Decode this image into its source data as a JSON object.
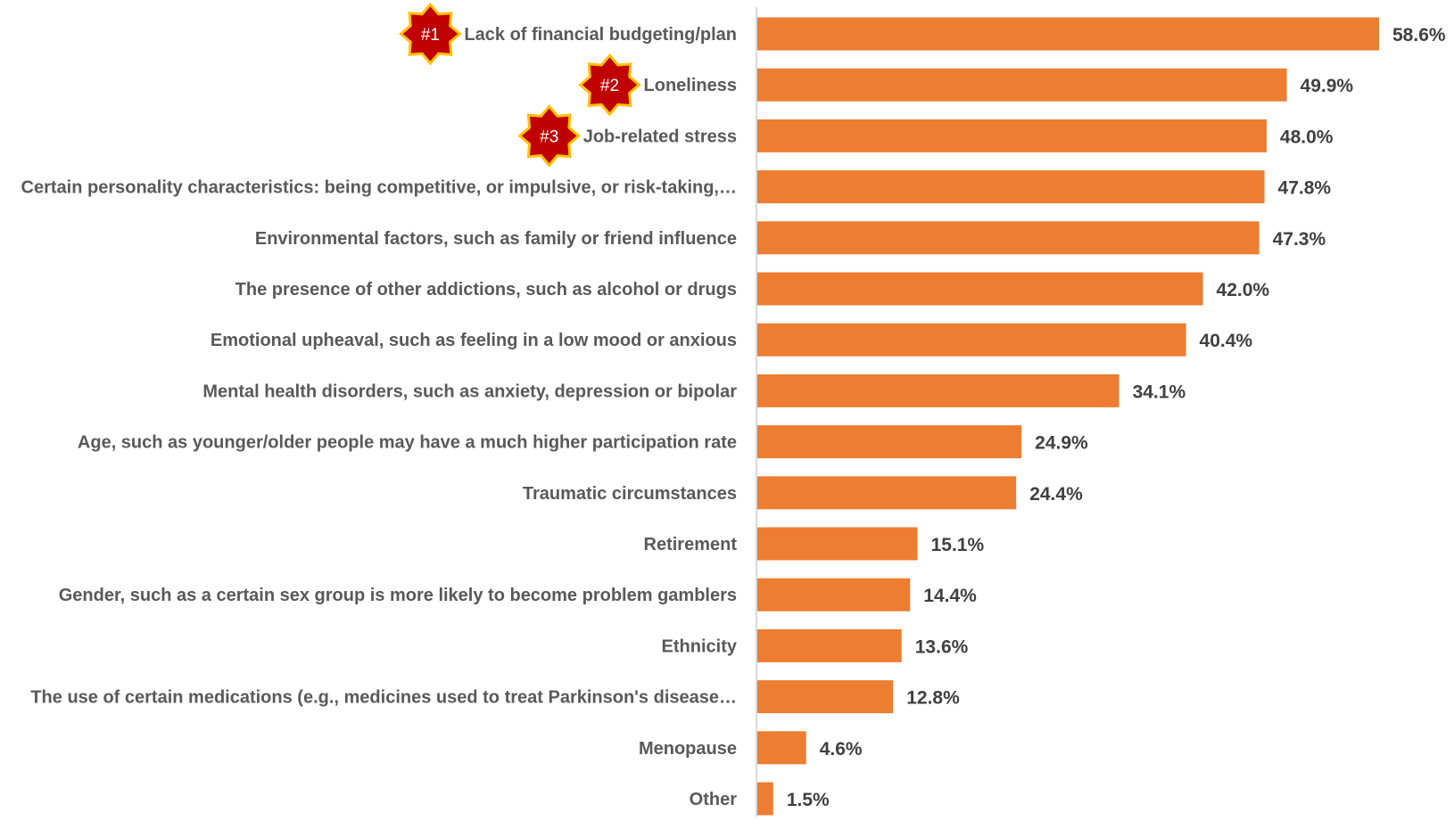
{
  "chart_data": {
    "type": "bar",
    "orientation": "horizontal",
    "categories": [
      "Lack of financial budgeting/plan",
      "Loneliness",
      "Job-related stress",
      "Certain personality characteristics: being competitive, or impulsive, or risk-taking,…",
      "Environmental factors, such as family or friend influence",
      "The presence of other addictions, such as alcohol or drugs",
      "Emotional upheaval, such as feeling in a low mood or anxious",
      "Mental health disorders, such as anxiety, depression or bipolar",
      "Age, such as younger/older people may have a much higher participation rate",
      "Traumatic circumstances",
      "Retirement",
      "Gender, such as a certain sex group is more likely to become problem gamblers",
      "Ethnicity",
      "The use of certain medications (e.g., medicines used to treat Parkinson's disease…",
      "Menopause",
      "Other"
    ],
    "values": [
      58.6,
      49.9,
      48.0,
      47.8,
      47.3,
      42.0,
      40.4,
      34.1,
      24.9,
      24.4,
      15.1,
      14.4,
      13.6,
      12.8,
      4.6,
      1.5
    ],
    "value_labels": [
      "58.6%",
      "49.9%",
      "48.0%",
      "47.8%",
      "47.3%",
      "42.0%",
      "40.4%",
      "34.1%",
      "24.9%",
      "24.4%",
      "15.1%",
      "14.4%",
      "13.6%",
      "12.8%",
      "4.6%",
      "1.5%"
    ],
    "rank_badges": [
      {
        "category_index": 0,
        "label": "#1"
      },
      {
        "category_index": 1,
        "label": "#2"
      },
      {
        "category_index": 2,
        "label": "#3"
      }
    ],
    "xlim": [
      0,
      58.6
    ],
    "grid": false,
    "legend": "none",
    "colors": {
      "bar": "#ED7D31",
      "badge_fill": "#C00000",
      "badge_outline": "#FFC000",
      "label_text": "#595959",
      "value_text": "#404040",
      "axis_line": "#D9D9D9"
    }
  }
}
